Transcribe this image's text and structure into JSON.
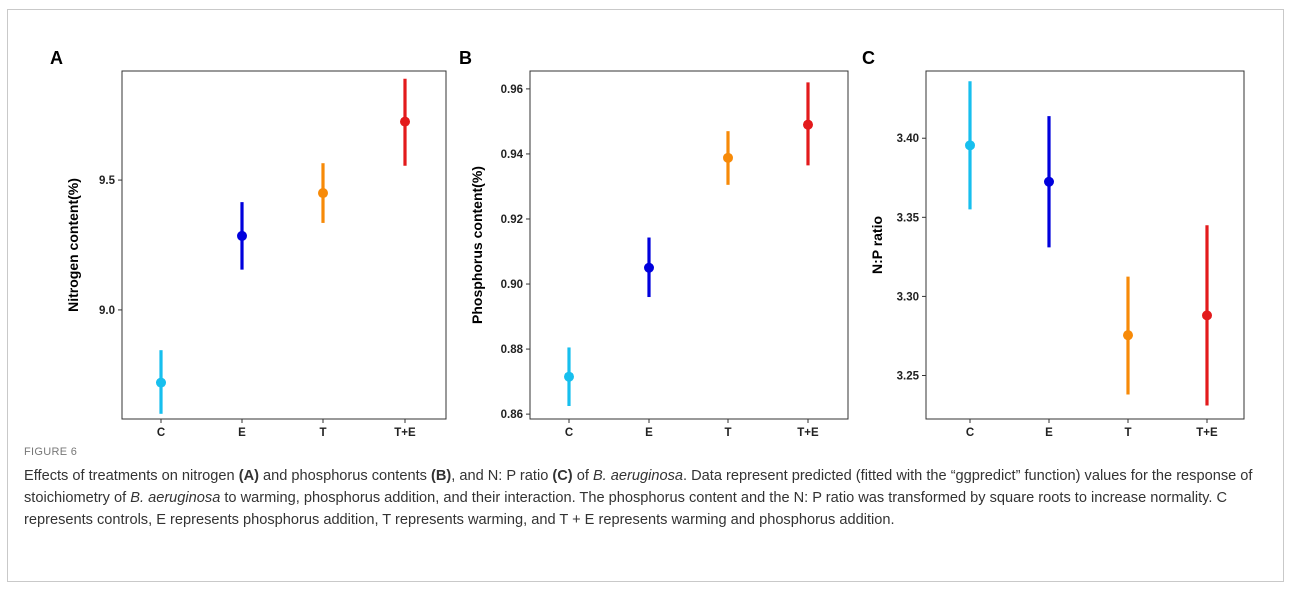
{
  "figure": {
    "label": "FIGURE 6",
    "caption_parts": [
      {
        "t": "Effects of treatments on nitrogen ",
        "s": ""
      },
      {
        "t": "(A)",
        "s": "b"
      },
      {
        "t": " and phosphorus contents ",
        "s": ""
      },
      {
        "t": "(B)",
        "s": "b"
      },
      {
        "t": ", and N: P ratio ",
        "s": ""
      },
      {
        "t": "(C)",
        "s": "b"
      },
      {
        "t": " of ",
        "s": ""
      },
      {
        "t": "B. aeruginosa",
        "s": "i"
      },
      {
        "t": ". Data represent predicted (fitted with the “ggpredict” function) values for the response of stoichiometry of ",
        "s": ""
      },
      {
        "t": "B. aeruginosa",
        "s": "i"
      },
      {
        "t": " to warming, phosphorus addition, and their interaction. The phosphorus content and the N: P ratio was transformed by square roots to increase normality. C represents controls, E represents phosphorus addition, T represents warming, and T + E represents warming and phosphorus addition.",
        "s": ""
      }
    ]
  },
  "chart_data": [
    {
      "type": "scatter",
      "panel": "A",
      "ylabel": "Nitrogen content(%)",
      "xlabel": "",
      "categories": [
        "C",
        "E",
        "T",
        "T+E"
      ],
      "values": [
        8.72,
        9.285,
        9.45,
        9.725
      ],
      "lower": [
        8.6,
        9.155,
        9.335,
        9.555
      ],
      "upper": [
        8.845,
        9.415,
        9.565,
        9.89
      ],
      "ylim": [
        8.58,
        9.92
      ],
      "yticks": [
        9.0,
        9.5
      ],
      "ytick_labels": [
        "9.0",
        "9.5"
      ],
      "colors": [
        "#17bfee",
        "#0000dd",
        "#f78a08",
        "#e31a1c"
      ]
    },
    {
      "type": "scatter",
      "panel": "B",
      "ylabel": "Phosphorus content(%)",
      "xlabel": "",
      "categories": [
        "C",
        "E",
        "T",
        "T+E"
      ],
      "values": [
        0.8715,
        0.905,
        0.9388,
        0.949
      ],
      "lower": [
        0.8625,
        0.896,
        0.9305,
        0.9365
      ],
      "upper": [
        0.8805,
        0.9143,
        0.947,
        0.962
      ],
      "ylim": [
        0.8585,
        0.9655
      ],
      "yticks": [
        0.86,
        0.88,
        0.9,
        0.92,
        0.94,
        0.96
      ],
      "ytick_labels": [
        "0.86",
        "0.88",
        "0.90",
        "0.92",
        "0.94",
        "0.96"
      ],
      "colors": [
        "#17bfee",
        "#0000dd",
        "#f78a08",
        "#e31a1c"
      ]
    },
    {
      "type": "scatter",
      "panel": "C",
      "ylabel": "N:P ratio",
      "xlabel": "",
      "categories": [
        "C",
        "E",
        "T",
        "T+E"
      ],
      "values": [
        3.3955,
        3.3725,
        3.2755,
        3.288
      ],
      "lower": [
        3.355,
        3.331,
        3.238,
        3.231
      ],
      "upper": [
        3.436,
        3.414,
        3.3125,
        3.345
      ],
      "ylim": [
        3.2225,
        3.4425
      ],
      "yticks": [
        3.25,
        3.3,
        3.35,
        3.4
      ],
      "ytick_labels": [
        "3.25",
        "3.30",
        "3.35",
        "3.40"
      ],
      "colors": [
        "#17bfee",
        "#0000dd",
        "#f78a08",
        "#e31a1c"
      ]
    }
  ]
}
